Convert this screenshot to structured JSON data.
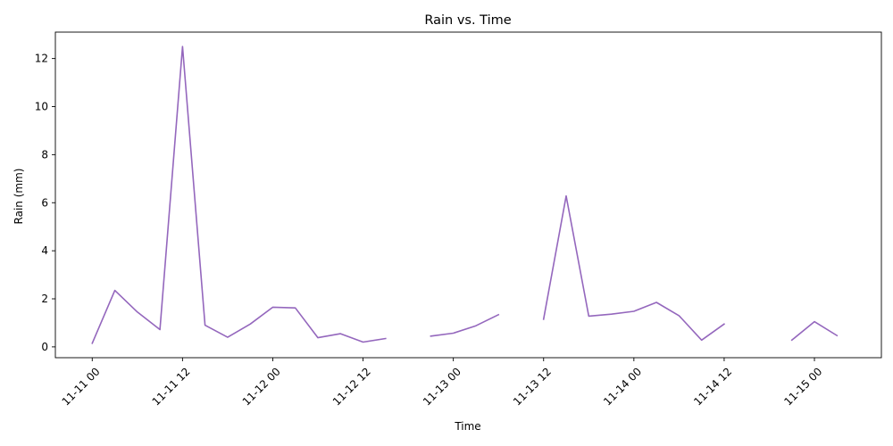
{
  "chart_data": {
    "type": "line",
    "title": "Rain vs. Time",
    "xlabel": "Time",
    "ylabel": "Rain (mm)",
    "x_unit": "hours",
    "xlim_hours": [
      -4.9,
      104.9
    ],
    "ylim": [
      -0.45,
      13.1
    ],
    "xticks": [
      {
        "hour": 0,
        "label": "11-11 00"
      },
      {
        "hour": 12,
        "label": "11-11 12"
      },
      {
        "hour": 24,
        "label": "11-12 00"
      },
      {
        "hour": 36,
        "label": "11-12 12"
      },
      {
        "hour": 48,
        "label": "11-13 00"
      },
      {
        "hour": 60,
        "label": "11-13 12"
      },
      {
        "hour": 72,
        "label": "11-14 00"
      },
      {
        "hour": 84,
        "label": "11-14 12"
      },
      {
        "hour": 96,
        "label": "11-15 00"
      }
    ],
    "yticks": [
      {
        "value": 0,
        "label": "0"
      },
      {
        "value": 2,
        "label": "2"
      },
      {
        "value": 4,
        "label": "4"
      },
      {
        "value": 6,
        "label": "6"
      },
      {
        "value": 8,
        "label": "8"
      },
      {
        "value": 10,
        "label": "10"
      },
      {
        "value": 12,
        "label": "12"
      }
    ],
    "grid": false,
    "series": [
      {
        "color": "#9467bd",
        "points": [
          {
            "x": "11-11 00:00",
            "y": 0.15
          },
          {
            "x": "11-11 03:00",
            "y": 2.35
          },
          {
            "x": "11-11 06:00",
            "y": 1.45
          },
          {
            "x": "11-11 09:00",
            "y": 0.72
          },
          {
            "x": "11-11 12:00",
            "y": 12.5
          },
          {
            "x": "11-11 15:00",
            "y": 0.9
          },
          {
            "x": "11-11 18:00",
            "y": 0.4
          },
          {
            "x": "11-11 21:00",
            "y": 0.95
          },
          {
            "x": "11-12 00:00",
            "y": 1.65
          },
          {
            "x": "11-12 03:00",
            "y": 1.62
          },
          {
            "x": "11-12 06:00",
            "y": 0.38
          },
          {
            "x": "11-12 09:00",
            "y": 0.55
          },
          {
            "x": "11-12 12:00",
            "y": 0.2
          },
          {
            "x": "11-12 15:00",
            "y": 0.35
          },
          {
            "x": "11-12 18:00",
            "y": null
          },
          {
            "x": "11-12 21:00",
            "y": 0.45
          },
          {
            "x": "11-13 00:00",
            "y": 0.57
          },
          {
            "x": "11-13 03:00",
            "y": 0.88
          },
          {
            "x": "11-13 06:00",
            "y": 1.34
          },
          {
            "x": "11-13 09:00",
            "y": null
          },
          {
            "x": "11-13 12:00",
            "y": 1.15
          },
          {
            "x": "11-13 15:00",
            "y": 6.28
          },
          {
            "x": "11-13 18:00",
            "y": 1.28
          },
          {
            "x": "11-13 21:00",
            "y": 1.36
          },
          {
            "x": "11-14 00:00",
            "y": 1.48
          },
          {
            "x": "11-14 03:00",
            "y": 1.85
          },
          {
            "x": "11-14 06:00",
            "y": 1.3
          },
          {
            "x": "11-14 09:00",
            "y": 0.28
          },
          {
            "x": "11-14 12:00",
            "y": 0.95
          },
          {
            "x": "11-14 15:00",
            "y": null
          },
          {
            "x": "11-14 18:00",
            "y": null
          },
          {
            "x": "11-14 21:00",
            "y": 0.28
          },
          {
            "x": "11-15 00:00",
            "y": 1.05
          },
          {
            "x": "11-15 03:00",
            "y": 0.47
          }
        ]
      }
    ]
  }
}
